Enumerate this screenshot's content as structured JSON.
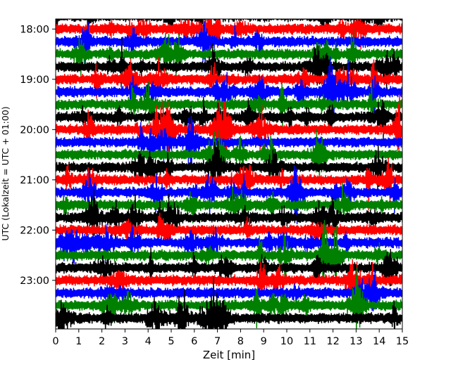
{
  "chart_data": {
    "type": "line",
    "title": "",
    "xlabel": "Zeit  [min]",
    "ylabel": "UTC (Lokalzeit = UTC + 01:00)",
    "xlim": [
      0,
      15
    ],
    "x_ticks": [
      "0",
      "1",
      "2",
      "3",
      "4",
      "5",
      "6",
      "7",
      "8",
      "9",
      "10",
      "11",
      "12",
      "13",
      "14",
      "15"
    ],
    "y_ticks": [
      "18:00",
      "19:00",
      "20:00",
      "21:00",
      "22:00",
      "23:00"
    ],
    "ylim": [
      "17:48",
      "23:58"
    ],
    "row_interval_minutes": 15,
    "row_start": "17:45",
    "row_end": "23:45",
    "color_cycle": [
      "#000000",
      "#ff0000",
      "#0000ff",
      "#008000"
    ],
    "grid": false,
    "legend": "none"
  }
}
